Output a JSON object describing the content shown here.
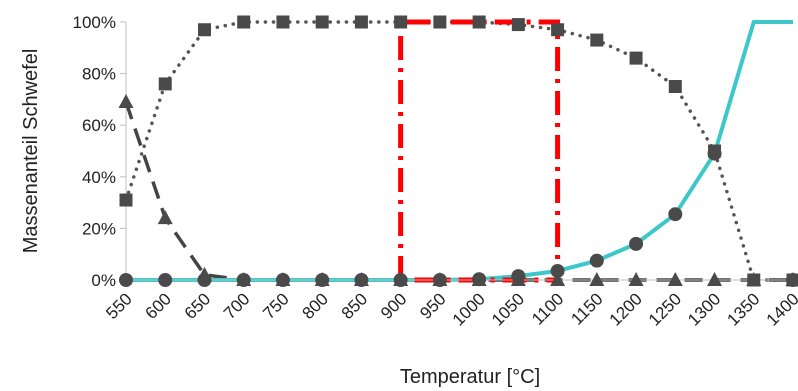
{
  "chart_data": {
    "type": "line",
    "title": "",
    "xlabel": "Temperatur [°C]",
    "ylabel": "Massenanteil Schwefel",
    "x": [
      550,
      600,
      650,
      700,
      750,
      800,
      850,
      900,
      950,
      1000,
      1050,
      1100,
      1150,
      1200,
      1250,
      1300,
      1350,
      1400
    ],
    "xlim": [
      550,
      1400
    ],
    "ylim": [
      0,
      100
    ],
    "y_ticks": [
      0,
      20,
      40,
      60,
      80,
      100
    ],
    "y_tick_labels": [
      "0%",
      "20%",
      "40%",
      "60%",
      "80%",
      "100%"
    ],
    "x_tick_labels": [
      "550",
      "600",
      "650",
      "700",
      "750",
      "800",
      "850",
      "900",
      "950",
      "1000",
      "1050",
      "1100",
      "1150",
      "1200",
      "1250",
      "1300",
      "1350",
      "1400"
    ],
    "grid": false,
    "legend": "none",
    "series": [
      {
        "style": "dotted-square",
        "color": "#555555",
        "points": [
          [
            550,
            31
          ],
          [
            600,
            76
          ],
          [
            650,
            97
          ],
          [
            700,
            100
          ],
          [
            750,
            100
          ],
          [
            800,
            100
          ],
          [
            850,
            100
          ],
          [
            900,
            100
          ],
          [
            950,
            100
          ],
          [
            1000,
            100
          ],
          [
            1050,
            99
          ],
          [
            1100,
            97
          ],
          [
            1150,
            93
          ],
          [
            1200,
            86
          ],
          [
            1250,
            75
          ],
          [
            1300,
            50
          ],
          [
            1350,
            0
          ],
          [
            1400,
            0
          ]
        ]
      },
      {
        "style": "dashed-triangle",
        "color": "#444444",
        "points": [
          [
            550,
            69
          ],
          [
            600,
            24
          ],
          [
            650,
            2
          ],
          [
            700,
            0
          ],
          [
            750,
            0
          ],
          [
            800,
            0
          ],
          [
            850,
            0
          ],
          [
            900,
            0
          ],
          [
            950,
            0
          ],
          [
            1000,
            0
          ],
          [
            1050,
            0
          ],
          [
            1100,
            0
          ],
          [
            1150,
            0
          ],
          [
            1200,
            0
          ],
          [
            1250,
            0
          ],
          [
            1300,
            0
          ],
          [
            1350,
            0
          ],
          [
            1400,
            0
          ]
        ]
      },
      {
        "style": "solid-circle",
        "color": "#3cc8c8",
        "line_points": [
          [
            550,
            0
          ],
          [
            600,
            0
          ],
          [
            650,
            0
          ],
          [
            700,
            0
          ],
          [
            750,
            0
          ],
          [
            800,
            0
          ],
          [
            850,
            0
          ],
          [
            900,
            0
          ],
          [
            950,
            0
          ],
          [
            1000,
            0.3
          ],
          [
            1050,
            1.5
          ],
          [
            1100,
            3.5
          ],
          [
            1150,
            7.5
          ],
          [
            1200,
            14
          ],
          [
            1250,
            25.5
          ],
          [
            1300,
            49
          ],
          [
            1350,
            100
          ],
          [
            1400,
            100
          ]
        ],
        "marker_points": [
          [
            550,
            0
          ],
          [
            600,
            0
          ],
          [
            650,
            0
          ],
          [
            700,
            0
          ],
          [
            750,
            0
          ],
          [
            800,
            0
          ],
          [
            850,
            0
          ],
          [
            900,
            0
          ],
          [
            950,
            0
          ],
          [
            1000,
            0.3
          ],
          [
            1050,
            1.5
          ],
          [
            1100,
            3.5
          ],
          [
            1150,
            7.5
          ],
          [
            1200,
            14
          ],
          [
            1250,
            25.5
          ],
          [
            1300,
            49
          ],
          [
            1400,
            0
          ]
        ]
      }
    ],
    "annotations": [
      {
        "type": "dash-dot-box",
        "color": "#ff0000",
        "x_range": [
          900,
          1100
        ],
        "y_range": [
          0,
          100
        ]
      }
    ]
  }
}
